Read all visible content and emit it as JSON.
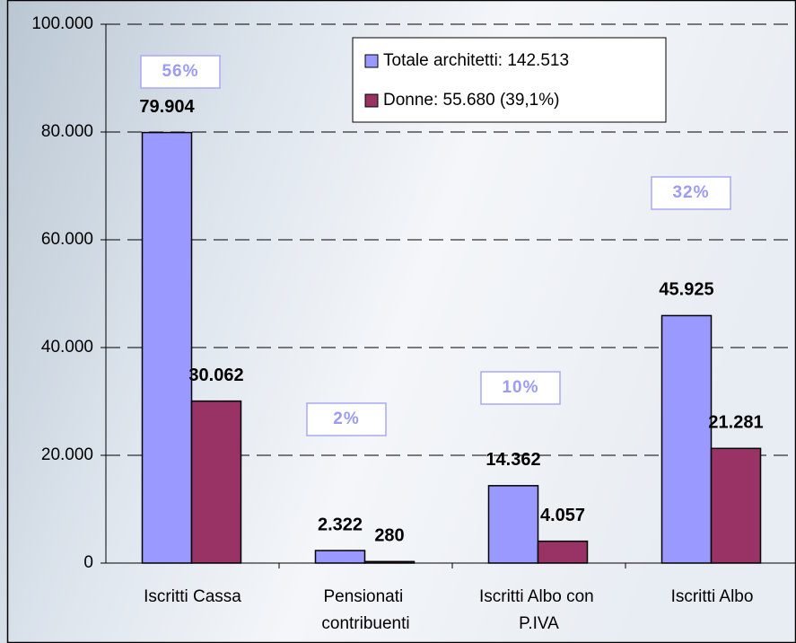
{
  "chart_data": {
    "type": "bar",
    "categories": [
      "Iscritti Cassa",
      "Pensionati contribuenti",
      "Iscritti Albo con P.IVA",
      "Iscritti Albo"
    ],
    "series": [
      {
        "name": "Totale architetti: 142.513",
        "color": "#9999ff",
        "values": [
          79904,
          2322,
          14362,
          45925
        ],
        "value_labels": [
          "79.904",
          "2.322",
          "14.362",
          "45.925"
        ]
      },
      {
        "name": "Donne: 55.680 (39,1%)",
        "color": "#993366",
        "values": [
          30062,
          280,
          4057,
          21281
        ],
        "value_labels": [
          "30.062",
          "280",
          "4.057",
          "21.281"
        ]
      }
    ],
    "annotations": [
      "56%",
      "2%",
      "10%",
      "32%"
    ],
    "ylim": [
      0,
      100000
    ],
    "yticks": [
      0,
      {
        "value": 20000,
        "label": "20.000"
      },
      {
        "value": 40000,
        "label": "40.000"
      },
      {
        "value": 60000,
        "label": "60.000"
      },
      {
        "value": 80000,
        "label": "80.000"
      },
      {
        "value": 100000,
        "label": "100.000"
      }
    ],
    "grid": true,
    "legend": "top-right"
  }
}
